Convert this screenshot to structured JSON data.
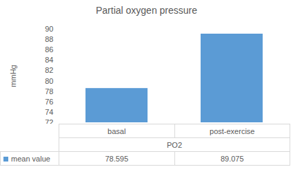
{
  "chart_data": {
    "type": "bar",
    "title": "Partial oxygen pressure",
    "ylabel": "mmHg",
    "xlabel": "PO2",
    "categories": [
      "basal",
      "post-exercise"
    ],
    "series": [
      {
        "name": "mean value",
        "color": "#5b9bd5",
        "values": [
          78.595,
          89.075
        ]
      }
    ],
    "ylim": [
      72,
      90
    ],
    "yticks": [
      72,
      74,
      76,
      78,
      80,
      82,
      84,
      86,
      88,
      90
    ],
    "grid": false
  }
}
